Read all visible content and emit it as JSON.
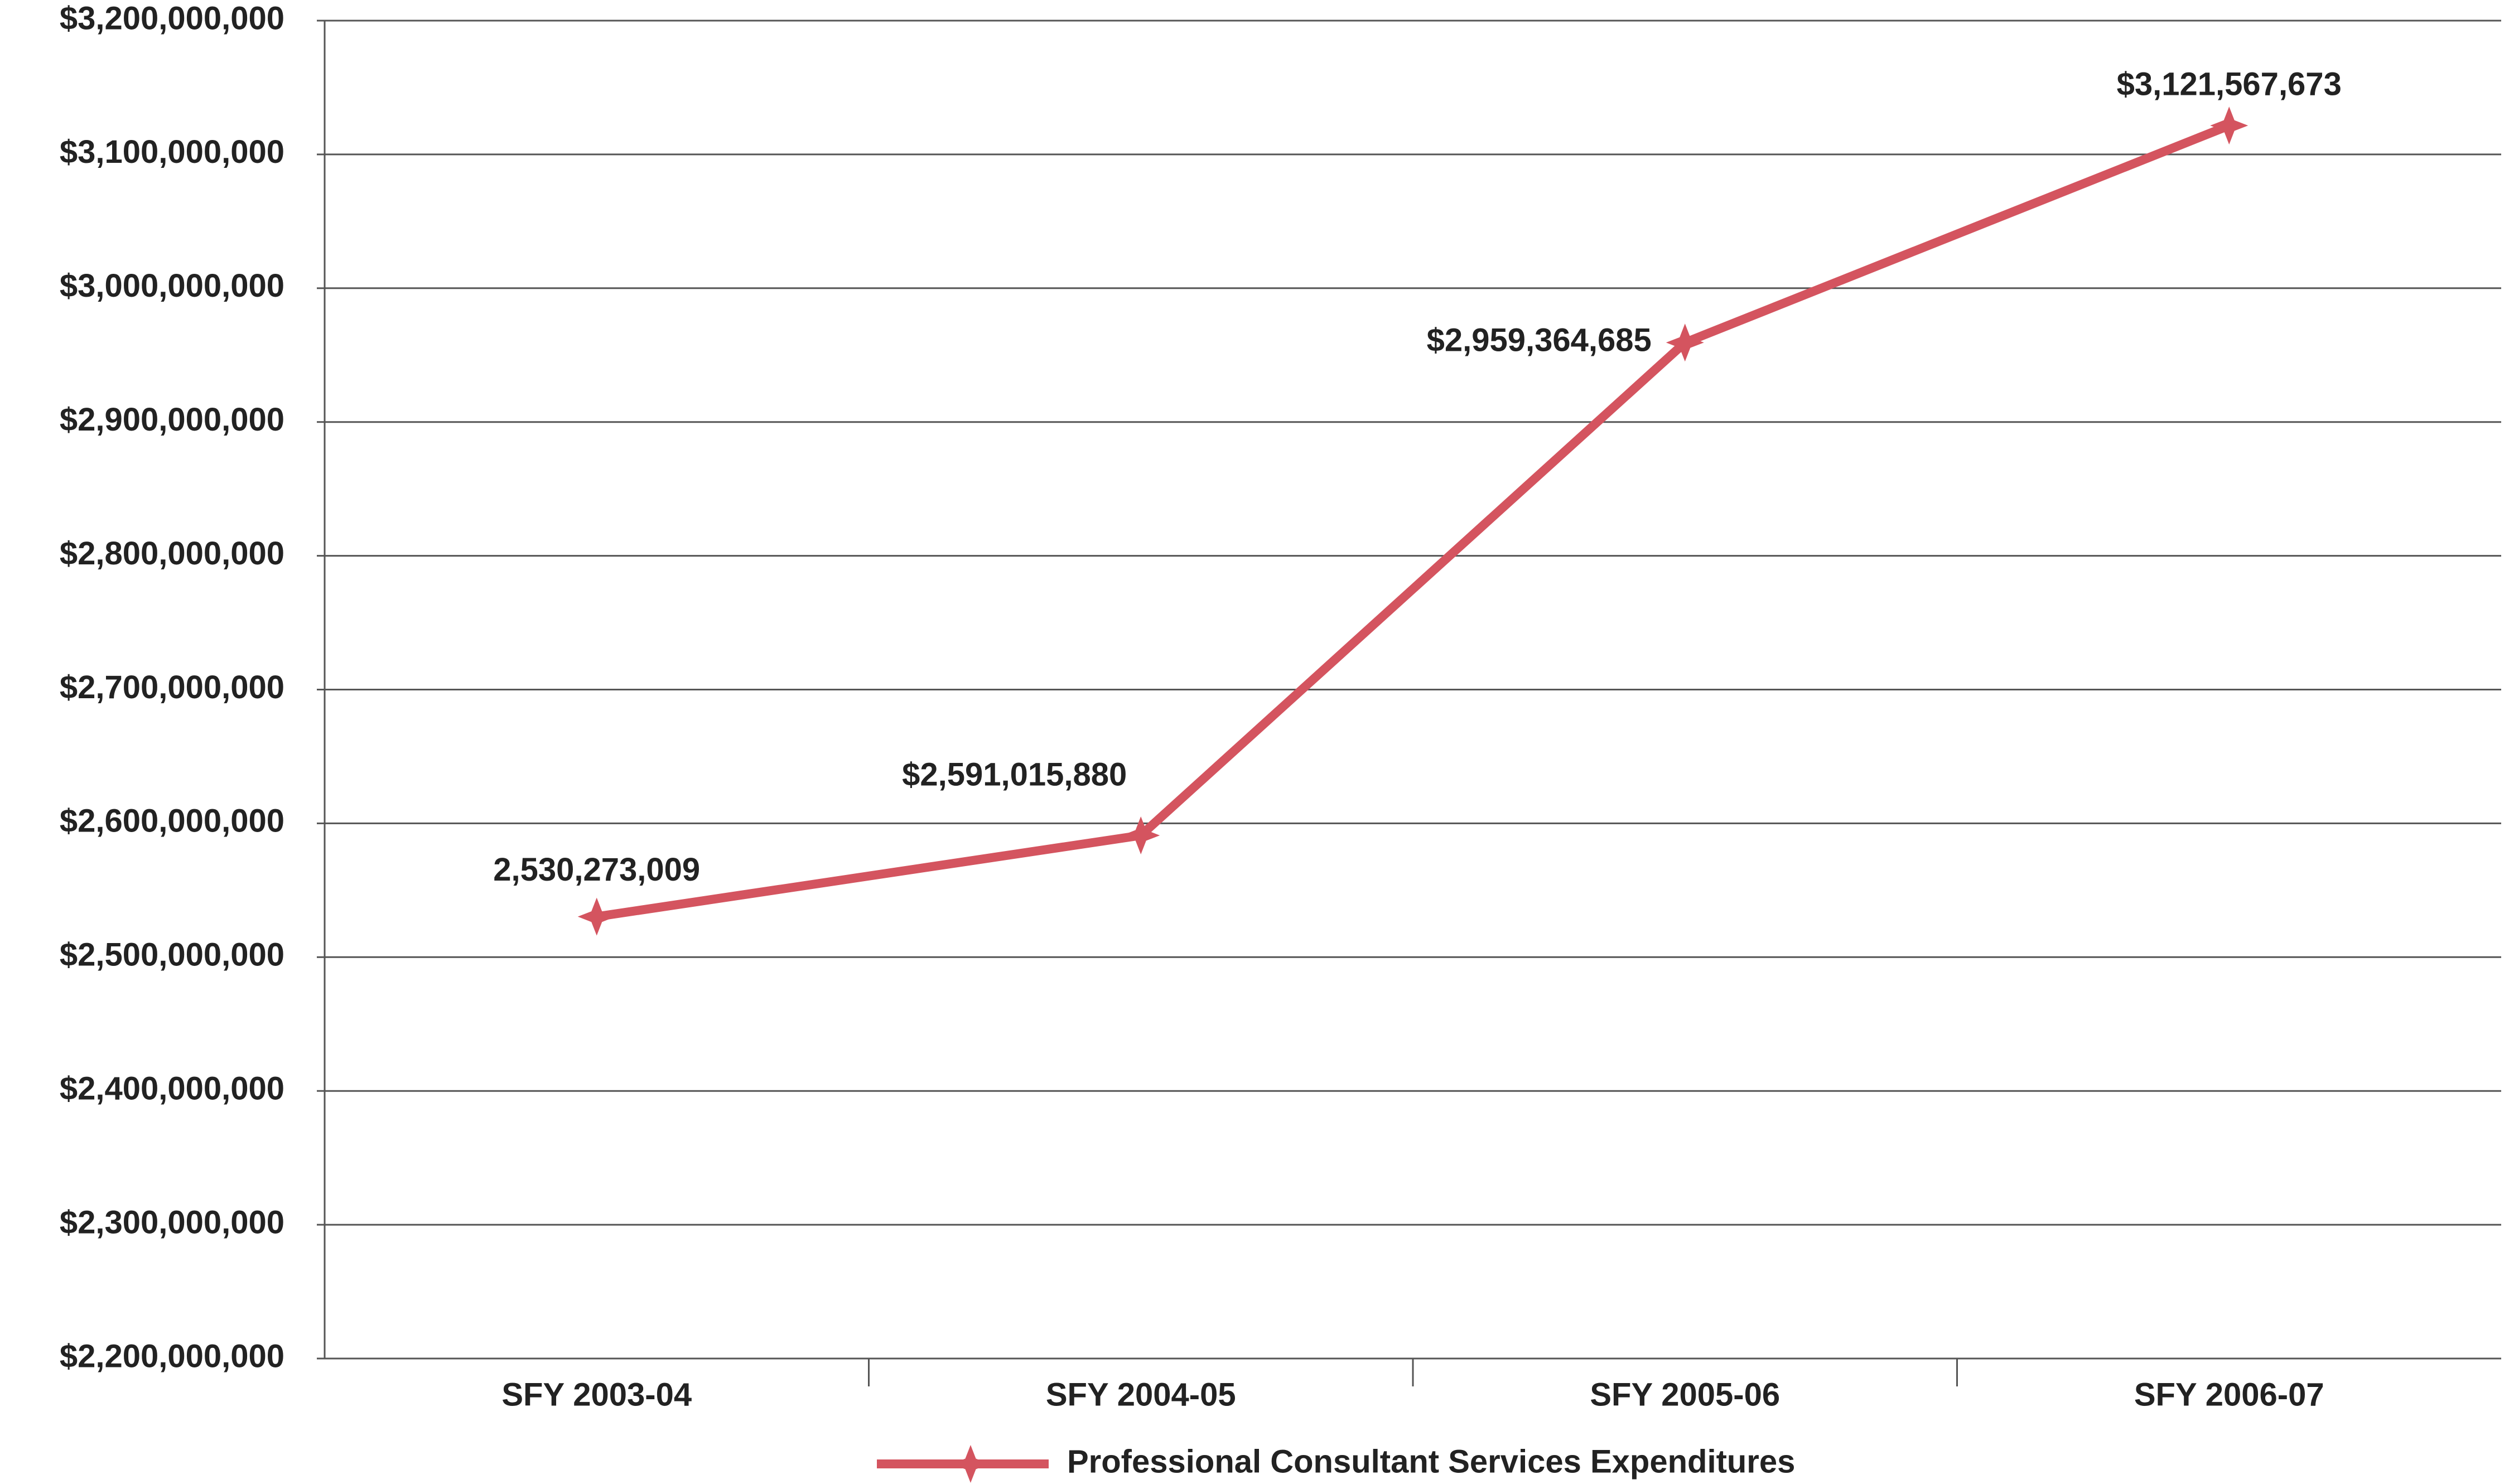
{
  "chart_data": {
    "type": "line",
    "categories": [
      "SFY 2003-04",
      "SFY 2004-05",
      "SFY 2005-06",
      "SFY 2006-07"
    ],
    "series": [
      {
        "name": "Professional Consultant Services Expenditures",
        "color": "#d4545f",
        "values": [
          2530273009,
          2591015880,
          2959364685,
          3121567673
        ],
        "value_labels": [
          "2,530,273,009",
          "$2,591,015,880",
          "$2,959,364,685",
          "$3,121,567,673"
        ]
      }
    ],
    "ylim": [
      2200000000,
      3200000000
    ],
    "yticks": [
      {
        "value": 2200000000,
        "label": "$2,200,000,000"
      },
      {
        "value": 2300000000,
        "label": "$2,300,000,000"
      },
      {
        "value": 2400000000,
        "label": "$2,400,000,000"
      },
      {
        "value": 2500000000,
        "label": "$2,500,000,000"
      },
      {
        "value": 2600000000,
        "label": "$2,600,000,000"
      },
      {
        "value": 2700000000,
        "label": "$2,700,000,000"
      },
      {
        "value": 2800000000,
        "label": "$2,800,000,000"
      },
      {
        "value": 2900000000,
        "label": "$2,900,000,000"
      },
      {
        "value": 3000000000,
        "label": "$3,000,000,000"
      },
      {
        "value": 3100000000,
        "label": "$3,100,000,000"
      },
      {
        "value": 3200000000,
        "label": "$3,200,000,000"
      }
    ],
    "grid": true,
    "legend": "bottom"
  }
}
